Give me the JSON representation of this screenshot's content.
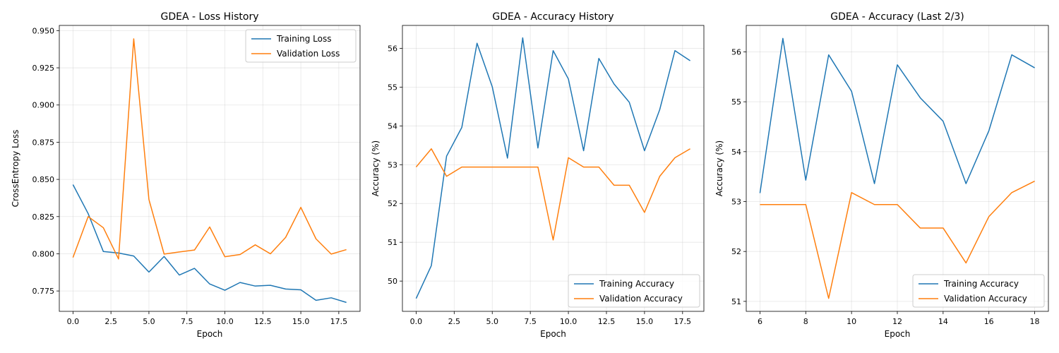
{
  "chart_data": [
    {
      "type": "line",
      "title": "GDEA - Loss History",
      "xlabel": "Epoch",
      "ylabel": "CrossEntropy Loss",
      "xlim": [
        -0.9,
        18.9
      ],
      "ylim": [
        0.7613,
        0.9535
      ],
      "xticks": [
        0,
        2.5,
        5,
        7.5,
        10,
        12.5,
        15,
        17.5
      ],
      "xtick_labels": [
        "0.0",
        "2.5",
        "5.0",
        "7.5",
        "10.0",
        "12.5",
        "15.0",
        "17.5"
      ],
      "yticks": [
        0.775,
        0.8,
        0.825,
        0.85,
        0.875,
        0.9,
        0.925,
        0.95
      ],
      "ytick_labels": [
        "0.775",
        "0.800",
        "0.825",
        "0.850",
        "0.875",
        "0.900",
        "0.925",
        "0.950"
      ],
      "grid": true,
      "legend": "top-right",
      "x": [
        0,
        1,
        2,
        3,
        4,
        5,
        6,
        7,
        8,
        9,
        10,
        11,
        12,
        13,
        14,
        15,
        16,
        17,
        18
      ],
      "series": [
        {
          "name": "Training Loss",
          "color": "#1f77b4",
          "values": [
            0.8465,
            0.827,
            0.8015,
            0.8005,
            0.7985,
            0.7877,
            0.7982,
            0.7857,
            0.7902,
            0.7797,
            0.7755,
            0.7807,
            0.7783,
            0.7788,
            0.7763,
            0.7758,
            0.7687,
            0.7704,
            0.7673
          ]
        },
        {
          "name": "Validation Loss",
          "color": "#ff7f0e",
          "values": [
            0.7975,
            0.825,
            0.8175,
            0.7965,
            0.9445,
            0.8365,
            0.7998,
            0.8012,
            0.8025,
            0.818,
            0.798,
            0.7995,
            0.806,
            0.8,
            0.811,
            0.8312,
            0.81,
            0.7998,
            0.8028
          ]
        }
      ]
    },
    {
      "type": "line",
      "title": "GDEA - Accuracy History",
      "xlabel": "Epoch",
      "ylabel": "Accuracy (%)",
      "xlim": [
        -0.9,
        18.9
      ],
      "ylim": [
        49.22,
        56.59
      ],
      "xticks": [
        0,
        2.5,
        5,
        7.5,
        10,
        12.5,
        15,
        17.5
      ],
      "xtick_labels": [
        "0.0",
        "2.5",
        "5.0",
        "7.5",
        "10.0",
        "12.5",
        "15.0",
        "17.5"
      ],
      "yticks": [
        50,
        51,
        52,
        53,
        54,
        55,
        56
      ],
      "ytick_labels": [
        "50",
        "51",
        "52",
        "53",
        "54",
        "55",
        "56"
      ],
      "grid": true,
      "legend": "bottom-right",
      "x": [
        0,
        1,
        2,
        3,
        4,
        5,
        6,
        7,
        8,
        9,
        10,
        11,
        12,
        13,
        14,
        15,
        16,
        17,
        18
      ],
      "series": [
        {
          "name": "Training Accuracy",
          "color": "#1f77b4",
          "values": [
            49.55,
            50.4,
            53.22,
            53.96,
            56.13,
            55.01,
            53.17,
            56.27,
            53.43,
            55.94,
            55.21,
            53.36,
            55.74,
            55.08,
            54.61,
            53.36,
            54.42,
            55.94,
            55.68
          ]
        },
        {
          "name": "Validation Accuracy",
          "color": "#ff7f0e",
          "values": [
            52.94,
            53.41,
            52.7,
            52.94,
            52.94,
            52.94,
            52.94,
            52.94,
            52.94,
            51.06,
            53.18,
            52.94,
            52.94,
            52.47,
            52.47,
            51.77,
            52.7,
            53.18,
            53.41
          ]
        }
      ]
    },
    {
      "type": "line",
      "title": "GDEA - Accuracy (Last 2/3)",
      "xlabel": "Epoch",
      "ylabel": "Accuracy (%)",
      "xlim": [
        5.4,
        18.6
      ],
      "ylim": [
        50.8,
        56.53
      ],
      "xticks": [
        6,
        8,
        10,
        12,
        14,
        16,
        18
      ],
      "xtick_labels": [
        "6",
        "8",
        "10",
        "12",
        "14",
        "16",
        "18"
      ],
      "yticks": [
        51,
        52,
        53,
        54,
        55,
        56
      ],
      "ytick_labels": [
        "51",
        "52",
        "53",
        "54",
        "55",
        "56"
      ],
      "grid": true,
      "legend": "bottom-right",
      "x": [
        6,
        7,
        8,
        9,
        10,
        11,
        12,
        13,
        14,
        15,
        16,
        17,
        18
      ],
      "series": [
        {
          "name": "Training Accuracy",
          "color": "#1f77b4",
          "values": [
            53.17,
            56.27,
            53.43,
            55.94,
            55.21,
            53.36,
            55.74,
            55.08,
            54.61,
            53.36,
            54.42,
            55.94,
            55.68
          ]
        },
        {
          "name": "Validation Accuracy",
          "color": "#ff7f0e",
          "values": [
            52.94,
            52.94,
            52.94,
            51.06,
            53.18,
            52.94,
            52.94,
            52.47,
            52.47,
            51.77,
            52.7,
            53.18,
            53.41
          ]
        }
      ]
    }
  ]
}
